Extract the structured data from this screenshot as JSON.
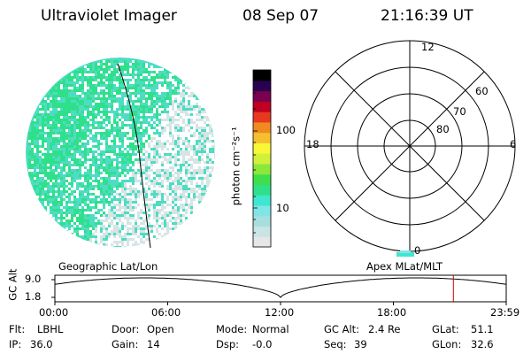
{
  "header": {
    "instrument": "Ultraviolet Imager",
    "date": "08 Sep 07",
    "time": "21:16:39 UT"
  },
  "colorbar": {
    "unit_label": "photon cm⁻²s⁻¹",
    "tick_100": "100",
    "tick_10": "10"
  },
  "polar": {
    "mlt_top": "12",
    "mlt_left": "18",
    "mlt_right": "6",
    "mlt_bottom": "0",
    "lat_60": "60",
    "lat_70": "70",
    "lat_80": "80"
  },
  "orbit": {
    "left_caption": "Geographic Lat/Lon",
    "right_caption": "Apex MLat/MLT",
    "axis_title": "GC Alt",
    "y_top": "9.0",
    "y_bottom": "1.8",
    "times": [
      "00:00",
      "06:00",
      "12:00",
      "18:00",
      "23:59"
    ],
    "current_time_fraction": 0.883
  },
  "status": {
    "flt_label": "Flt:",
    "flt_value": "LBHL",
    "ip_label": "IP:",
    "ip_value": "36.0",
    "door_label": "Door:",
    "door_value": "Open",
    "gain_label": "Gain:",
    "gain_value": "14",
    "mode_label": "Mode:",
    "mode_value": "Normal",
    "dsp_label": "Dsp:",
    "dsp_value": "-0.0",
    "gcalt_label": "GC Alt:",
    "gcalt_value": "2.4 Re",
    "seq_label": "Seq:",
    "seq_value": "39",
    "glat_label": "GLat:",
    "glat_value": "51.1",
    "glon_label": "GLon:",
    "glon_value": "32.6"
  },
  "colors": {
    "scale": [
      "#e6e6e6",
      "#c9e4e4",
      "#a8dede",
      "#7fe6e6",
      "#3fe6d0",
      "#2fe08a",
      "#3de04a",
      "#8be83a",
      "#d0f03a",
      "#f7f736",
      "#f5c030",
      "#f08a20",
      "#e83820",
      "#c00020",
      "#7a0050",
      "#2a0050",
      "#000000"
    ],
    "imager_main": "#2fe08a",
    "imager_alt": "#4fdcc4",
    "imager_light": "#d6e4e4",
    "marker": "#cc0000"
  }
}
